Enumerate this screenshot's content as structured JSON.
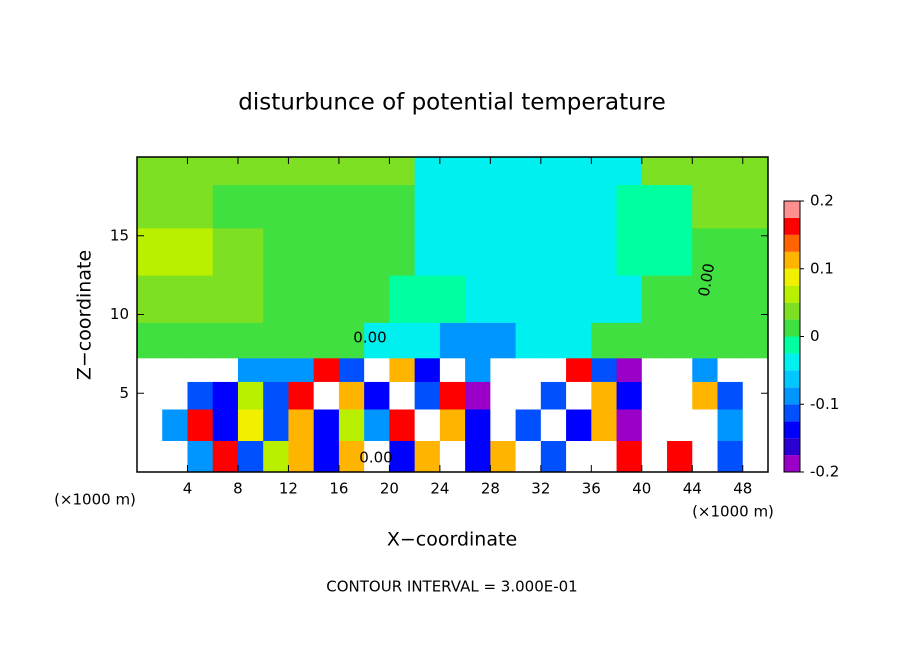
{
  "chart_data": {
    "type": "contourf",
    "title": "disturbunce of potential temperature",
    "x_label": "X−coordinate",
    "y_label": "Z−coordinate",
    "x_unit_left": "(×1000 m)",
    "x_unit_right": "(×1000 m)",
    "footer": "CONTOUR INTERVAL = 3.000E-01",
    "annotations": [
      "0.00",
      "0.00",
      "0.00"
    ],
    "xlim": [
      0,
      50
    ],
    "ylim": [
      0,
      20
    ],
    "xticks": [
      4,
      8,
      12,
      16,
      20,
      24,
      28,
      32,
      36,
      40,
      44,
      48
    ],
    "yticks": [
      5,
      10,
      15
    ],
    "x": [
      1,
      3,
      5,
      7,
      9,
      11,
      13,
      15,
      17,
      19,
      21,
      23,
      25,
      27,
      29,
      31,
      33,
      35,
      37,
      39,
      41,
      43,
      45,
      47,
      49
    ],
    "y": [
      1,
      3,
      5,
      6.5,
      8,
      11,
      14,
      17,
      19.5
    ],
    "z": [
      [
        0.3,
        0.3,
        -0.1,
        0.15,
        -0.12,
        0.05,
        0.1,
        -0.15,
        0.12,
        0.3,
        -0.15,
        0.12,
        0.3,
        -0.15,
        0.1,
        0.3,
        -0.12,
        0.3,
        0.3,
        0.15,
        0.3,
        0.15,
        0.3,
        -0.12,
        0.3
      ],
      [
        0.3,
        -0.1,
        0.15,
        -0.15,
        0.08,
        -0.12,
        0.1,
        -0.15,
        0.05,
        -0.1,
        0.15,
        0.3,
        0.12,
        -0.15,
        0.3,
        -0.12,
        0.3,
        -0.15,
        0.1,
        -0.2,
        0.3,
        0.3,
        0.3,
        -0.1,
        0.3
      ],
      [
        0.3,
        0.3,
        -0.12,
        -0.15,
        0.05,
        -0.12,
        0.15,
        0.3,
        0.12,
        -0.15,
        0.3,
        -0.12,
        0.15,
        -0.18,
        0.3,
        0.4,
        -0.12,
        0.3,
        0.12,
        -0.15,
        0.3,
        0.3,
        0.1,
        -0.12,
        0.3
      ],
      [
        0.3,
        0.3,
        0.3,
        0.3,
        -0.1,
        -0.1,
        -0.1,
        0.15,
        -0.12,
        0.3,
        0.12,
        -0.15,
        0.25,
        -0.1,
        0.3,
        0.4,
        0.3,
        0.15,
        -0.12,
        -0.2,
        0.3,
        0.3,
        -0.1,
        0.3,
        0.3
      ],
      [
        0.01,
        0.01,
        0.01,
        0.01,
        0.01,
        0.01,
        0.01,
        0.01,
        0.01,
        -0.03,
        -0.03,
        -0.03,
        -0.08,
        -0.08,
        -0.08,
        -0.05,
        -0.05,
        -0.05,
        0,
        0,
        0,
        0,
        0,
        0,
        0
      ],
      [
        0.04,
        0.04,
        0.04,
        0.04,
        0.04,
        0.02,
        0.02,
        0.02,
        0.02,
        0.02,
        -0.02,
        -0.02,
        -0.02,
        -0.04,
        -0.04,
        -0.04,
        -0.03,
        -0.03,
        -0.03,
        -0.03,
        0.01,
        0.01,
        0.01,
        0.01,
        0.01
      ],
      [
        0.07,
        0.07,
        0.07,
        0.04,
        0.04,
        0.02,
        0.02,
        0.02,
        0.02,
        0.02,
        0.02,
        -0.03,
        -0.03,
        -0.03,
        -0.03,
        -0.05,
        -0.05,
        -0.05,
        -0.05,
        -0.02,
        -0.02,
        -0.02,
        0.02,
        0.02,
        0.02
      ],
      [
        0.03,
        0.03,
        0.03,
        0.02,
        0.02,
        0.02,
        0.02,
        0.02,
        0.02,
        0.02,
        0.02,
        -0.04,
        -0.04,
        -0.04,
        -0.04,
        -0.04,
        -0.04,
        -0.04,
        -0.04,
        -0.02,
        -0.02,
        -0.02,
        0.03,
        0.03,
        0.03
      ],
      [
        0.03,
        0.03,
        0.03,
        0.03,
        0.03,
        0.03,
        0.03,
        0.03,
        0.03,
        0.03,
        0.03,
        -0.04,
        -0.04,
        -0.04,
        -0.04,
        -0.04,
        -0.04,
        -0.04,
        -0.04,
        -0.04,
        0.03,
        0.03,
        0.03,
        0.03,
        0.03
      ]
    ],
    "levels": [
      -0.2,
      -0.175,
      -0.15,
      -0.125,
      -0.1,
      -0.075,
      -0.05,
      -0.025,
      0,
      0.025,
      0.05,
      0.075,
      0.1,
      0.125,
      0.15,
      0.175,
      0.2
    ],
    "colors": [
      "#9a00c8",
      "#2a00d2",
      "#0000ff",
      "#0050ff",
      "#0096ff",
      "#00c8ff",
      "#00f0f0",
      "#00ffa0",
      "#40e040",
      "#7ee022",
      "#b8f000",
      "#f0f000",
      "#ffb400",
      "#ff6400",
      "#ff0000",
      "#ff9090"
    ],
    "colorbar_ticks": [
      0.2,
      0.1,
      0,
      -0.1,
      -0.2
    ]
  }
}
